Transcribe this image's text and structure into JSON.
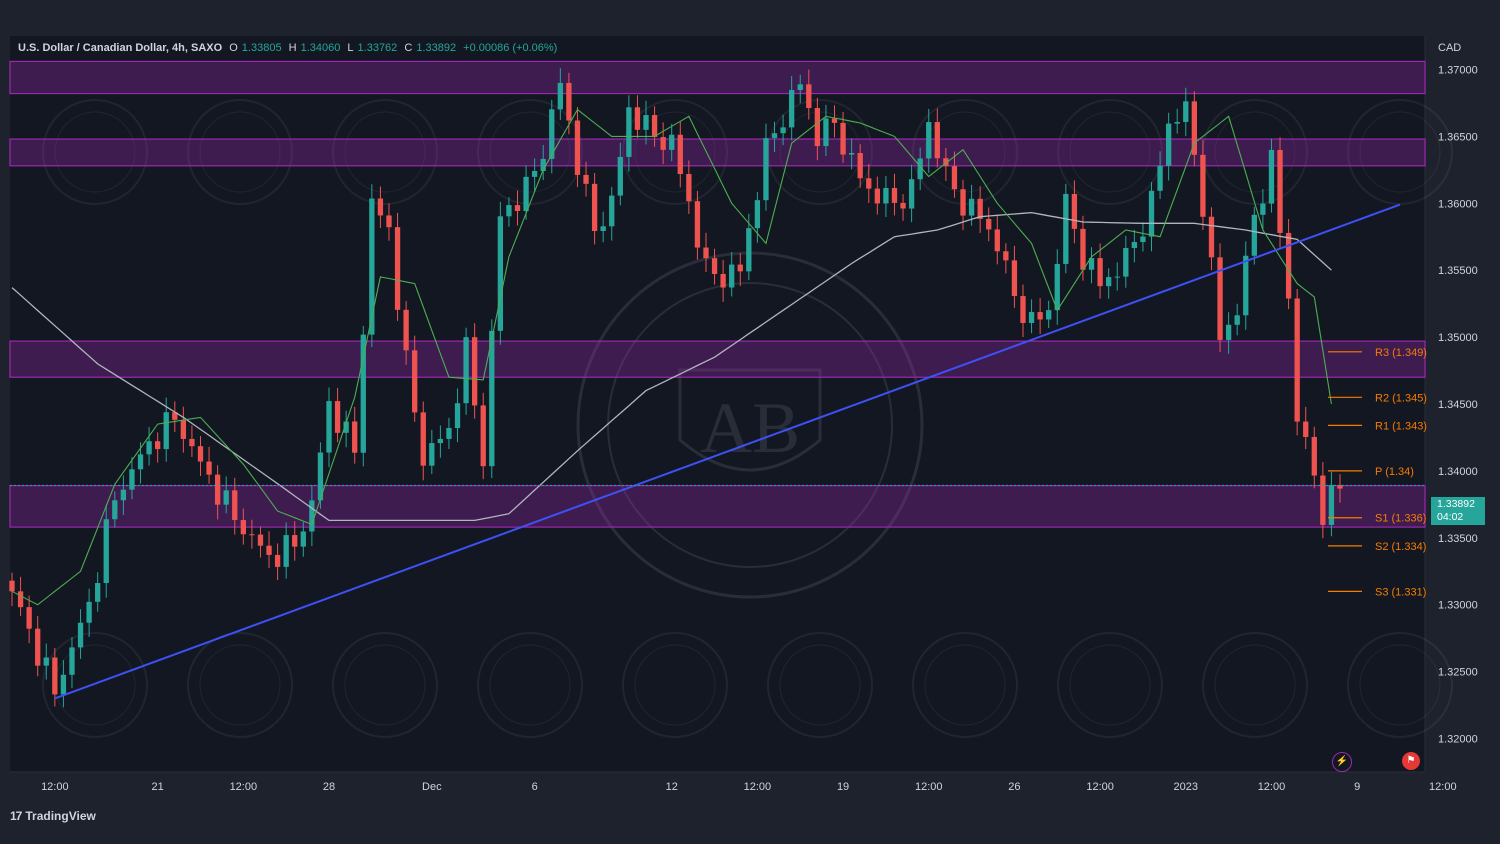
{
  "header": {
    "symbol": "U.S. Dollar / Canadian Dollar, 4h, SAXO",
    "open_label": "O",
    "open": "1.33805",
    "high_label": "H",
    "high": "1.34060",
    "low_label": "L",
    "low": "1.33762",
    "close_label": "C",
    "close": "1.33892",
    "change": "+0.00086 (+0.06%)"
  },
  "currency": "CAD",
  "last_price": {
    "price": "1.33892",
    "countdown": "04:02"
  },
  "brand": "TradingView",
  "colors": {
    "background": "#1e222d",
    "up": "#26a69a",
    "down": "#ef5350",
    "zone": "#9c27b0",
    "trendline": "#3f51f5",
    "ma_fast": "#4caf50",
    "ma_slow": "#b2b5be",
    "pivot": "#f57c00"
  },
  "icons": [
    "lightning-icon",
    "flag-icon",
    "tradingview-logo"
  ],
  "chart_data": {
    "type": "candlestick",
    "ylim": [
      1.3175,
      1.3725
    ],
    "y_ticks": [
      "1.37000",
      "1.36500",
      "1.36000",
      "1.35500",
      "1.35000",
      "1.34500",
      "1.34000",
      "1.33500",
      "1.33000",
      "1.32500",
      "1.32000"
    ],
    "x_ticks": [
      "12:00",
      "21",
      "12:00",
      "28",
      "Dec",
      "6",
      "12",
      "12:00",
      "19",
      "12:00",
      "26",
      "12:00",
      "2023",
      "12:00",
      "9",
      "12:00"
    ],
    "zones": [
      {
        "from": 1.3682,
        "to": 1.3706
      },
      {
        "from": 1.3628,
        "to": 1.3648
      },
      {
        "from": 1.347,
        "to": 1.3497
      },
      {
        "from": 1.3358,
        "to": 1.3389
      }
    ],
    "pivots": [
      {
        "label": "R3 (1.349)",
        "value": 1.3489
      },
      {
        "label": "R2 (1.345)",
        "value": 1.3455
      },
      {
        "label": "R1 (1.343)",
        "value": 1.3434
      },
      {
        "label": "P (1.34)",
        "value": 1.34
      },
      {
        "label": "S1 (1.336)",
        "value": 1.3365
      },
      {
        "label": "S2 (1.334)",
        "value": 1.3344
      },
      {
        "label": "S3 (1.331)",
        "value": 1.331
      }
    ],
    "trendline": [
      {
        "i": 5,
        "y": 1.323
      },
      {
        "i": 162,
        "y": 1.3599
      }
    ],
    "ma_fast_anchors": [
      [
        0,
        1.331
      ],
      [
        3,
        1.33
      ],
      [
        8,
        1.3325
      ],
      [
        12,
        1.339
      ],
      [
        17,
        1.3435
      ],
      [
        22,
        1.344
      ],
      [
        27,
        1.3405
      ],
      [
        31,
        1.337
      ],
      [
        35,
        1.336
      ],
      [
        40,
        1.3455
      ],
      [
        43,
        1.3545
      ],
      [
        47,
        1.354
      ],
      [
        51,
        1.347
      ],
      [
        55,
        1.3468
      ],
      [
        58,
        1.356
      ],
      [
        62,
        1.3625
      ],
      [
        66,
        1.367
      ],
      [
        70,
        1.365
      ],
      [
        75,
        1.365
      ],
      [
        79,
        1.3665
      ],
      [
        84,
        1.36
      ],
      [
        88,
        1.357
      ],
      [
        91,
        1.3645
      ],
      [
        95,
        1.3665
      ],
      [
        99,
        1.366
      ],
      [
        103,
        1.365
      ],
      [
        107,
        1.362
      ],
      [
        111,
        1.364
      ],
      [
        115,
        1.36
      ],
      [
        119,
        1.357
      ],
      [
        122,
        1.352
      ],
      [
        126,
        1.356
      ],
      [
        130,
        1.358
      ],
      [
        134,
        1.3575
      ],
      [
        138,
        1.3645
      ],
      [
        142,
        1.3665
      ],
      [
        146,
        1.358
      ],
      [
        150,
        1.354
      ],
      [
        152,
        1.353
      ],
      [
        154,
        1.345
      ]
    ],
    "ma_slow_anchors": [
      [
        0,
        1.3537
      ],
      [
        10,
        1.348
      ],
      [
        20,
        1.344
      ],
      [
        30,
        1.3395
      ],
      [
        37,
        1.3363
      ],
      [
        42,
        1.3363
      ],
      [
        48,
        1.3363
      ],
      [
        54,
        1.3363
      ],
      [
        58,
        1.3368
      ],
      [
        66,
        1.3415
      ],
      [
        74,
        1.346
      ],
      [
        82,
        1.3485
      ],
      [
        90,
        1.352
      ],
      [
        98,
        1.3555
      ],
      [
        103,
        1.3575
      ],
      [
        108,
        1.358
      ],
      [
        113,
        1.359
      ],
      [
        119,
        1.3593
      ],
      [
        125,
        1.3586
      ],
      [
        132,
        1.3585
      ],
      [
        138,
        1.3585
      ],
      [
        144,
        1.358
      ],
      [
        150,
        1.3573
      ],
      [
        154,
        1.355
      ]
    ],
    "close_anchors": [
      [
        0,
        1.331
      ],
      [
        5,
        1.3235
      ],
      [
        9,
        1.33
      ],
      [
        12,
        1.338
      ],
      [
        16,
        1.342
      ],
      [
        19,
        1.344
      ],
      [
        22,
        1.3405
      ],
      [
        26,
        1.3365
      ],
      [
        30,
        1.3335
      ],
      [
        33,
        1.3345
      ],
      [
        35,
        1.3375
      ],
      [
        37,
        1.345
      ],
      [
        40,
        1.3415
      ],
      [
        42,
        1.36
      ],
      [
        44,
        1.358
      ],
      [
        46,
        1.348
      ],
      [
        48,
        1.341
      ],
      [
        51,
        1.343
      ],
      [
        53,
        1.349
      ],
      [
        55,
        1.341
      ],
      [
        57,
        1.359
      ],
      [
        60,
        1.361
      ],
      [
        62,
        1.364
      ],
      [
        64,
        1.369
      ],
      [
        66,
        1.363
      ],
      [
        68,
        1.358
      ],
      [
        70,
        1.36
      ],
      [
        72,
        1.367
      ],
      [
        75,
        1.365
      ],
      [
        77,
        1.3645
      ],
      [
        79,
        1.36
      ],
      [
        81,
        1.355
      ],
      [
        83,
        1.3545
      ],
      [
        85,
        1.355
      ],
      [
        88,
        1.364
      ],
      [
        90,
        1.3665
      ],
      [
        92,
        1.369
      ],
      [
        94,
        1.365
      ],
      [
        96,
        1.366
      ],
      [
        98,
        1.363
      ],
      [
        100,
        1.361
      ],
      [
        103,
        1.36
      ],
      [
        105,
        1.361
      ],
      [
        107,
        1.366
      ],
      [
        109,
        1.362
      ],
      [
        111,
        1.36
      ],
      [
        113,
        1.359
      ],
      [
        115,
        1.357
      ],
      [
        117,
        1.353
      ],
      [
        119,
        1.351
      ],
      [
        121,
        1.352
      ],
      [
        123,
        1.36
      ],
      [
        125,
        1.356
      ],
      [
        127,
        1.354
      ],
      [
        129,
        1.355
      ],
      [
        131,
        1.357
      ],
      [
        133,
        1.36
      ],
      [
        135,
        1.366
      ],
      [
        137,
        1.367
      ],
      [
        139,
        1.36
      ],
      [
        141,
        1.35
      ],
      [
        143,
        1.352
      ],
      [
        145,
        1.359
      ],
      [
        147,
        1.363
      ],
      [
        149,
        1.353
      ],
      [
        150,
        1.344
      ],
      [
        151,
        1.342
      ],
      [
        153,
        1.337
      ],
      [
        155,
        1.3389
      ]
    ]
  }
}
